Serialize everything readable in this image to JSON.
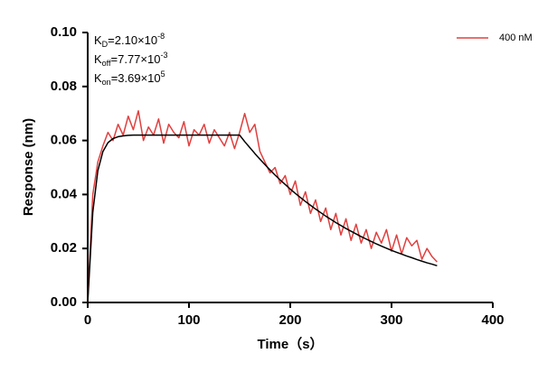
{
  "chart_data": {
    "type": "line",
    "xlabel": "Time（s）",
    "ylabel": "Response (nm)",
    "xlim": [
      0,
      400
    ],
    "ylim": [
      0,
      0.1
    ],
    "xticks": [
      0,
      100,
      200,
      300,
      400
    ],
    "yticks": [
      {
        "value": 0,
        "label": "0.00"
      },
      {
        "value": 0.02,
        "label": "0.02"
      },
      {
        "value": 0.04,
        "label": "0.04"
      },
      {
        "value": 0.06,
        "label": "0.06"
      },
      {
        "value": 0.08,
        "label": "0.08"
      },
      {
        "value": 0.1,
        "label": "0.10"
      }
    ],
    "annotations": [
      {
        "main": "K",
        "sub": "D",
        "text": "=2.10×10",
        "sup": "-8"
      },
      {
        "main": "K",
        "sub": "off",
        "text": "=7.77×10",
        "sup": "-3"
      },
      {
        "main": "K",
        "sub": "on",
        "text": "=3.69×10",
        "sup": "5"
      }
    ],
    "legend": "upper right",
    "x": [
      0,
      5,
      10,
      15,
      20,
      25,
      30,
      35,
      40,
      45,
      50,
      55,
      60,
      65,
      70,
      75,
      80,
      85,
      90,
      95,
      100,
      105,
      110,
      115,
      120,
      125,
      130,
      135,
      140,
      145,
      150,
      155,
      160,
      165,
      170,
      175,
      180,
      185,
      190,
      195,
      200,
      205,
      210,
      215,
      220,
      225,
      230,
      235,
      240,
      245,
      250,
      255,
      260,
      265,
      270,
      275,
      280,
      285,
      290,
      295,
      300,
      305,
      310,
      315,
      320,
      325,
      330,
      335,
      340,
      345
    ],
    "series": [
      {
        "name": "400 nM",
        "color": "#e0403f",
        "values": [
          0.0,
          0.04,
          0.052,
          0.058,
          0.063,
          0.06,
          0.066,
          0.062,
          0.069,
          0.064,
          0.071,
          0.06,
          0.065,
          0.062,
          0.068,
          0.059,
          0.066,
          0.063,
          0.061,
          0.067,
          0.058,
          0.064,
          0.062,
          0.066,
          0.059,
          0.064,
          0.061,
          0.058,
          0.063,
          0.057,
          0.063,
          0.07,
          0.063,
          0.066,
          0.056,
          0.052,
          0.048,
          0.05,
          0.044,
          0.047,
          0.04,
          0.045,
          0.036,
          0.041,
          0.033,
          0.038,
          0.03,
          0.035,
          0.027,
          0.033,
          0.025,
          0.031,
          0.023,
          0.029,
          0.022,
          0.027,
          0.02,
          0.026,
          0.022,
          0.027,
          0.019,
          0.025,
          0.018,
          0.024,
          0.021,
          0.023,
          0.016,
          0.02,
          0.017,
          0.015
        ]
      },
      {
        "color": "#000000",
        "values": [
          0,
          0.0334,
          0.0488,
          0.0559,
          0.0592,
          0.0607,
          0.0614,
          0.0617,
          0.0619,
          0.062,
          0.062,
          0.062,
          0.062,
          0.062,
          0.062,
          0.062,
          0.062,
          0.062,
          0.062,
          0.062,
          0.062,
          0.062,
          0.062,
          0.062,
          0.062,
          0.062,
          0.062,
          0.062,
          0.062,
          0.062,
          0.062,
          0.0596,
          0.0574,
          0.0552,
          0.0531,
          0.0511,
          0.0491,
          0.0472,
          0.0454,
          0.0437,
          0.042,
          0.0404,
          0.0389,
          0.0374,
          0.036,
          0.0346,
          0.0333,
          0.032,
          0.0308,
          0.0296,
          0.0285,
          0.0274,
          0.0264,
          0.0254,
          0.0244,
          0.0235,
          0.0226,
          0.0217,
          0.0209,
          0.0201,
          0.0193,
          0.0186,
          0.0179,
          0.0172,
          0.0166,
          0.0159,
          0.0153,
          0.0147,
          0.0142,
          0.0136
        ]
      }
    ]
  }
}
